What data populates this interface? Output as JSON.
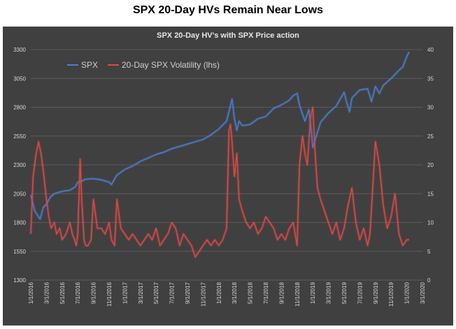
{
  "page": {
    "title": "SPX 20-Day HVs Remain Near Lows"
  },
  "chart_data": {
    "type": "line",
    "title": "SPX 20-Day HV's with SPX Price action",
    "legend": {
      "placement": "top-left",
      "inside": true
    },
    "grid": true,
    "colors": {
      "spx": "#4a7fd0",
      "vol": "#e04848",
      "background": "#404040",
      "grid": "#5a5a5a",
      "text": "#d8d8d8"
    },
    "x_ticks": [
      "1/1/2016",
      "3/1/2016",
      "5/1/2016",
      "7/1/2016",
      "9/1/2016",
      "11/1/2016",
      "1/1/2017",
      "3/1/2017",
      "5/1/2017",
      "7/1/2017",
      "9/1/2017",
      "11/1/2017",
      "1/1/2018",
      "3/1/2018",
      "5/1/2018",
      "7/1/2018",
      "9/1/2018",
      "11/1/2018",
      "1/1/2019",
      "3/1/2019",
      "5/1/2019",
      "7/1/2019",
      "9/1/2019",
      "11/1/2019",
      "1/1/2020",
      "3/1/2020"
    ],
    "y_left": {
      "min": 1300,
      "max": 3300,
      "ticks": [
        1300,
        1550,
        1800,
        2050,
        2300,
        2550,
        2800,
        3050,
        3300
      ]
    },
    "y_right": {
      "min": 0,
      "max": 40,
      "ticks": [
        0,
        5,
        10,
        15,
        20,
        25,
        30,
        35,
        40
      ]
    },
    "series": [
      {
        "name": "SPX",
        "axis": "left",
        "x_month_index": [
          0,
          0.5,
          1.2,
          1.6,
          2,
          2.5,
          3,
          4,
          5,
          5.7,
          6,
          6.5,
          7,
          8,
          9,
          10,
          10.3,
          10.8,
          11,
          12,
          13,
          14,
          15,
          16,
          17,
          18,
          19,
          20,
          21,
          22,
          23,
          24,
          25,
          25.4,
          25.7,
          26,
          26.3,
          26.6,
          27,
          28,
          29,
          30,
          31,
          32,
          33,
          33.5,
          34,
          34.3,
          34.7,
          35,
          35.5,
          35.8,
          36,
          37,
          38,
          39,
          40,
          40.3,
          40.7,
          41,
          42,
          43,
          43.5,
          44,
          44.5,
          45,
          46,
          47,
          47.5,
          48,
          48.3
        ],
        "values": [
          2040,
          1900,
          1830,
          1930,
          1960,
          2020,
          2050,
          2070,
          2080,
          2110,
          2150,
          2160,
          2175,
          2180,
          2170,
          2150,
          2130,
          2190,
          2210,
          2260,
          2290,
          2330,
          2360,
          2390,
          2410,
          2440,
          2460,
          2480,
          2500,
          2520,
          2560,
          2610,
          2680,
          2790,
          2870,
          2700,
          2600,
          2680,
          2640,
          2650,
          2700,
          2720,
          2790,
          2820,
          2860,
          2900,
          2920,
          2820,
          2740,
          2680,
          2780,
          2600,
          2450,
          2670,
          2750,
          2810,
          2930,
          2850,
          2760,
          2880,
          2950,
          2960,
          2850,
          2980,
          2920,
          2990,
          3050,
          3120,
          3150,
          3240,
          3280
        ]
      },
      {
        "name": "20-Day SPX Volatility (lhs)",
        "axis": "right",
        "x_month_index": [
          0,
          0.3,
          0.7,
          1,
          1.3,
          1.6,
          2,
          2.3,
          2.6,
          3,
          3.3,
          3.7,
          4,
          4.5,
          5,
          5.3,
          5.6,
          5.8,
          6,
          6.3,
          6.5,
          6.8,
          7,
          7.3,
          7.7,
          8,
          8.5,
          9,
          9.5,
          10,
          10.3,
          10.7,
          11,
          11.5,
          12,
          12.5,
          13,
          13.5,
          14,
          14.5,
          15,
          15.5,
          16,
          16.5,
          17,
          17.5,
          18,
          18.5,
          19,
          19.5,
          20,
          20.5,
          21,
          21.5,
          22,
          22.5,
          23,
          23.5,
          24,
          24.5,
          25,
          25.3,
          25.5,
          25.7,
          26,
          26.3,
          26.6,
          27,
          27.5,
          28,
          28.5,
          29,
          29.5,
          30,
          30.5,
          31,
          31.5,
          32,
          32.5,
          33,
          33.5,
          34,
          34.3,
          34.7,
          35,
          35.3,
          35.5,
          35.7,
          36,
          36.3,
          36.6,
          37,
          37.5,
          38,
          38.5,
          39,
          39.5,
          40,
          40.5,
          41,
          41.5,
          42,
          42.5,
          43,
          43.3,
          43.7,
          44,
          44.5,
          45,
          45.5,
          46,
          46.5,
          47,
          47.5,
          48,
          48.3
        ],
        "values": [
          8,
          18,
          22,
          24,
          22,
          19,
          14,
          11,
          9,
          10,
          8,
          9,
          7,
          8,
          10,
          8,
          7,
          6,
          8,
          21,
          14,
          7,
          6,
          6,
          7,
          14,
          9,
          9,
          8,
          10,
          7,
          6,
          14,
          9,
          8,
          7,
          8,
          7,
          6,
          7,
          8,
          7,
          9,
          6,
          7,
          8,
          10,
          9,
          6,
          8,
          7,
          6,
          4,
          5,
          6,
          7,
          6,
          7,
          6,
          7,
          9,
          26,
          27,
          24,
          18,
          22,
          14,
          12,
          10,
          9,
          10,
          8,
          9,
          11,
          10,
          9,
          7,
          8,
          7,
          9,
          10,
          6,
          20,
          25,
          22,
          20,
          24,
          28,
          30,
          22,
          16,
          14,
          12,
          10,
          8,
          10,
          7,
          9,
          13,
          16,
          10,
          7,
          9,
          6,
          8,
          17,
          24,
          20,
          13,
          9,
          11,
          15,
          8,
          6,
          7,
          7
        ]
      }
    ]
  }
}
